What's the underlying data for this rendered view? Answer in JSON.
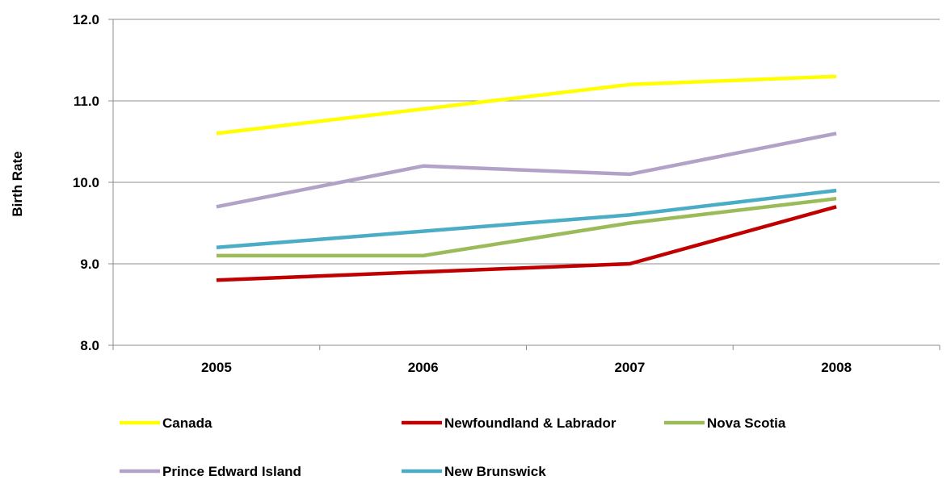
{
  "chart_data": {
    "type": "line",
    "title": "",
    "xlabel": "",
    "ylabel": "Birth Rate",
    "x": [
      "2005",
      "2006",
      "2007",
      "2008"
    ],
    "ylim": [
      8.0,
      12.0
    ],
    "yticks": [
      "8.0",
      "9.0",
      "10.0",
      "11.0",
      "12.0"
    ],
    "grid": "horizontal",
    "legend_position": "bottom",
    "series": [
      {
        "name": "Canada",
        "color": "#FFFF00",
        "values": [
          10.6,
          10.9,
          11.2,
          11.3
        ]
      },
      {
        "name": "Newfoundland & Labrador",
        "color": "#C00000",
        "values": [
          8.8,
          8.9,
          9.0,
          9.7
        ]
      },
      {
        "name": "Nova Scotia",
        "color": "#9BBB59",
        "values": [
          9.1,
          9.1,
          9.5,
          9.8
        ]
      },
      {
        "name": "Prince Edward Island",
        "color": "#B3A2C7",
        "values": [
          9.7,
          10.2,
          10.1,
          10.6
        ]
      },
      {
        "name": "New Brunswick",
        "color": "#4BACC6",
        "values": [
          9.2,
          9.4,
          9.6,
          9.9
        ]
      }
    ]
  }
}
